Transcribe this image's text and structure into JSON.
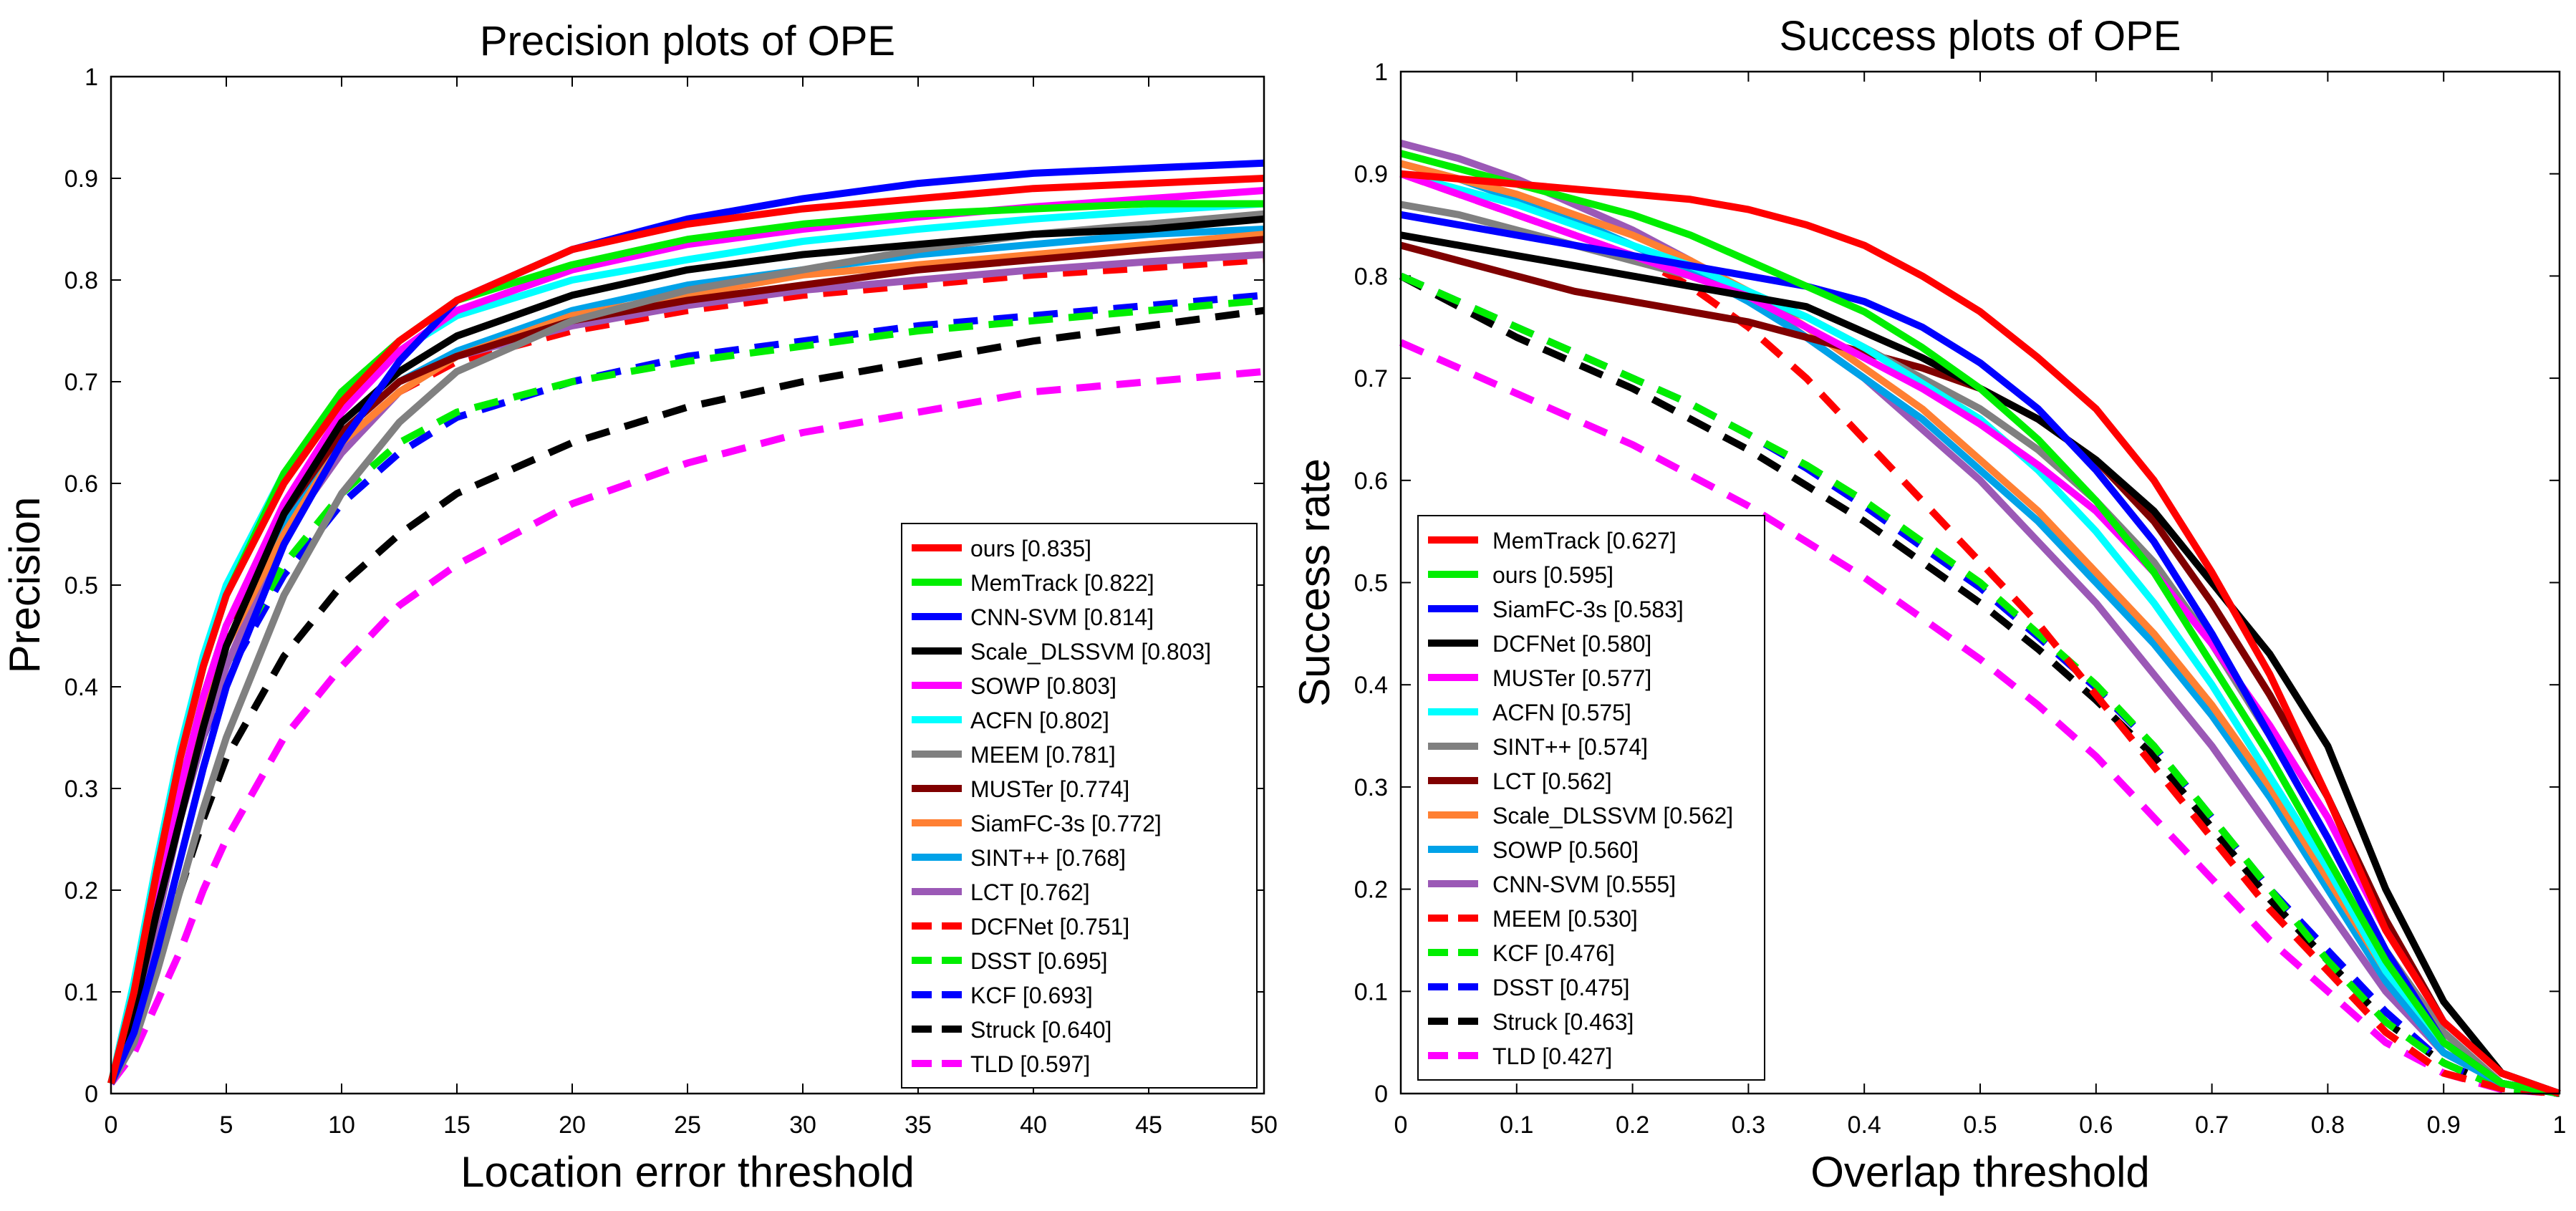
{
  "chart_data": [
    {
      "type": "line",
      "title": "Precision plots of OPE",
      "xlabel": "Location error threshold",
      "ylabel": "Precision",
      "xlim": [
        0,
        50
      ],
      "ylim": [
        0,
        1
      ],
      "xticks": [
        "0",
        "5",
        "10",
        "15",
        "20",
        "25",
        "30",
        "35",
        "40",
        "45",
        "50"
      ],
      "yticks": [
        "0",
        "0.1",
        "0.2",
        "0.3",
        "0.4",
        "0.5",
        "0.6",
        "0.7",
        "0.8",
        "0.9",
        "1"
      ],
      "legend_position": "bottom-right",
      "x": [
        0,
        1,
        2,
        3,
        4,
        5,
        7.5,
        10,
        12.5,
        15,
        20,
        25,
        30,
        35,
        40,
        45,
        50
      ],
      "series": [
        {
          "name": "ours",
          "score": "[0.835]",
          "color": "#ff0000",
          "dashed": false,
          "values": [
            0.01,
            0.1,
            0.22,
            0.33,
            0.42,
            0.49,
            0.6,
            0.68,
            0.74,
            0.78,
            0.83,
            0.855,
            0.87,
            0.88,
            0.89,
            0.895,
            0.9
          ]
        },
        {
          "name": "MemTrack",
          "score": "[0.822]",
          "color": "#00ee00",
          "dashed": false,
          "values": [
            0.01,
            0.1,
            0.22,
            0.33,
            0.42,
            0.49,
            0.61,
            0.69,
            0.74,
            0.78,
            0.815,
            0.84,
            0.855,
            0.865,
            0.87,
            0.875,
            0.875
          ]
        },
        {
          "name": "CNN-SVM",
          "score": "[0.814]",
          "color": "#0000ff",
          "dashed": false,
          "values": [
            0.01,
            0.06,
            0.14,
            0.23,
            0.32,
            0.4,
            0.54,
            0.64,
            0.72,
            0.78,
            0.83,
            0.86,
            0.88,
            0.895,
            0.905,
            0.91,
            0.915
          ]
        },
        {
          "name": "Scale_DLSSVM",
          "score": "[0.803]",
          "color": "#000000",
          "dashed": false,
          "values": [
            0.01,
            0.08,
            0.18,
            0.27,
            0.36,
            0.44,
            0.57,
            0.66,
            0.71,
            0.745,
            0.785,
            0.81,
            0.825,
            0.835,
            0.845,
            0.85,
            0.86
          ]
        },
        {
          "name": "SOWP",
          "score": "[0.803]",
          "color": "#ff00ff",
          "dashed": false,
          "values": [
            0.01,
            0.09,
            0.2,
            0.3,
            0.39,
            0.46,
            0.58,
            0.67,
            0.73,
            0.77,
            0.81,
            0.835,
            0.85,
            0.862,
            0.872,
            0.88,
            0.888
          ]
        },
        {
          "name": "ACFN",
          "score": "[0.802]",
          "color": "#00ffff",
          "dashed": false,
          "values": [
            0.01,
            0.11,
            0.23,
            0.34,
            0.43,
            0.5,
            0.61,
            0.68,
            0.73,
            0.765,
            0.8,
            0.82,
            0.838,
            0.85,
            0.86,
            0.868,
            0.875
          ]
        },
        {
          "name": "MEEM",
          "score": "[0.781]",
          "color": "#808080",
          "dashed": false,
          "values": [
            0.01,
            0.05,
            0.12,
            0.2,
            0.28,
            0.35,
            0.49,
            0.59,
            0.66,
            0.71,
            0.76,
            0.79,
            0.81,
            0.83,
            0.845,
            0.855,
            0.865
          ]
        },
        {
          "name": "MUSTer",
          "score": "[0.774]",
          "color": "#800000",
          "dashed": false,
          "values": [
            0.01,
            0.09,
            0.2,
            0.3,
            0.39,
            0.46,
            0.57,
            0.65,
            0.7,
            0.725,
            0.76,
            0.78,
            0.795,
            0.81,
            0.82,
            0.83,
            0.84
          ]
        },
        {
          "name": "SiamFC-3s",
          "score": "[0.772]",
          "color": "#ff8033",
          "dashed": false,
          "values": [
            0.01,
            0.08,
            0.19,
            0.29,
            0.37,
            0.44,
            0.55,
            0.64,
            0.69,
            0.725,
            0.765,
            0.785,
            0.805,
            0.815,
            0.825,
            0.835,
            0.845
          ]
        },
        {
          "name": "SINT++",
          "score": "[0.768]",
          "color": "#00a2e8",
          "dashed": false,
          "values": [
            0.01,
            0.08,
            0.19,
            0.29,
            0.37,
            0.44,
            0.56,
            0.65,
            0.7,
            0.73,
            0.77,
            0.795,
            0.81,
            0.825,
            0.835,
            0.845,
            0.85
          ]
        },
        {
          "name": "LCT",
          "score": "[0.762]",
          "color": "#9b59b6",
          "dashed": false,
          "values": [
            0.01,
            0.07,
            0.17,
            0.27,
            0.35,
            0.42,
            0.55,
            0.63,
            0.69,
            0.725,
            0.755,
            0.775,
            0.79,
            0.8,
            0.81,
            0.818,
            0.825
          ]
        },
        {
          "name": "DCFNet",
          "score": "[0.751]",
          "color": "#ff0000",
          "dashed": true,
          "values": [
            0.01,
            0.09,
            0.2,
            0.3,
            0.38,
            0.45,
            0.56,
            0.64,
            0.69,
            0.72,
            0.75,
            0.77,
            0.785,
            0.795,
            0.805,
            0.812,
            0.82
          ]
        },
        {
          "name": "DSST",
          "score": "[0.695]",
          "color": "#00ee00",
          "dashed": true,
          "values": [
            0.01,
            0.1,
            0.2,
            0.29,
            0.36,
            0.42,
            0.52,
            0.59,
            0.64,
            0.67,
            0.7,
            0.72,
            0.735,
            0.75,
            0.76,
            0.77,
            0.78
          ]
        },
        {
          "name": "KCF",
          "score": "[0.693]",
          "color": "#0000ff",
          "dashed": true,
          "values": [
            0.01,
            0.09,
            0.19,
            0.28,
            0.35,
            0.41,
            0.51,
            0.58,
            0.63,
            0.665,
            0.7,
            0.725,
            0.74,
            0.755,
            0.765,
            0.775,
            0.785
          ]
        },
        {
          "name": "Struck",
          "score": "[0.640]",
          "color": "#000000",
          "dashed": true,
          "values": [
            0.01,
            0.06,
            0.13,
            0.2,
            0.27,
            0.33,
            0.43,
            0.5,
            0.55,
            0.59,
            0.64,
            0.675,
            0.7,
            0.72,
            0.74,
            0.755,
            0.77
          ]
        },
        {
          "name": "TLD",
          "score": "[0.597]",
          "color": "#ff00ff",
          "dashed": true,
          "values": [
            0.01,
            0.04,
            0.09,
            0.14,
            0.2,
            0.25,
            0.35,
            0.42,
            0.48,
            0.52,
            0.58,
            0.62,
            0.65,
            0.67,
            0.69,
            0.7,
            0.71
          ]
        }
      ]
    },
    {
      "type": "line",
      "title": "Success plots of OPE",
      "xlabel": "Overlap threshold",
      "ylabel": "Success rate",
      "xlim": [
        0,
        1
      ],
      "ylim": [
        0,
        1
      ],
      "xticks": [
        "0",
        "0.1",
        "0.2",
        "0.3",
        "0.4",
        "0.5",
        "0.6",
        "0.7",
        "0.8",
        "0.9",
        "1"
      ],
      "yticks": [
        "0",
        "0.1",
        "0.2",
        "0.3",
        "0.4",
        "0.5",
        "0.6",
        "0.7",
        "0.8",
        "0.9",
        "1"
      ],
      "legend_position": "bottom-left",
      "x": [
        0,
        0.05,
        0.1,
        0.15,
        0.2,
        0.25,
        0.3,
        0.35,
        0.4,
        0.45,
        0.5,
        0.55,
        0.6,
        0.65,
        0.7,
        0.75,
        0.8,
        0.85,
        0.9,
        0.95,
        1
      ],
      "series": [
        {
          "name": "MemTrack",
          "score": "[0.627]",
          "color": "#ff0000",
          "dashed": false,
          "values": [
            0.9,
            0.895,
            0.89,
            0.885,
            0.88,
            0.875,
            0.865,
            0.85,
            0.83,
            0.8,
            0.765,
            0.72,
            0.67,
            0.6,
            0.51,
            0.41,
            0.29,
            0.16,
            0.07,
            0.02,
            0
          ]
        },
        {
          "name": "ours",
          "score": "[0.595]",
          "color": "#00ee00",
          "dashed": false,
          "values": [
            0.92,
            0.905,
            0.89,
            0.875,
            0.86,
            0.84,
            0.815,
            0.79,
            0.765,
            0.73,
            0.69,
            0.64,
            0.58,
            0.51,
            0.42,
            0.33,
            0.23,
            0.13,
            0.05,
            0.01,
            0
          ]
        },
        {
          "name": "SiamFC-3s",
          "score": "[0.583]",
          "color": "#0000ff",
          "dashed": false,
          "values": [
            0.86,
            0.85,
            0.84,
            0.83,
            0.82,
            0.81,
            0.8,
            0.79,
            0.775,
            0.75,
            0.715,
            0.67,
            0.61,
            0.54,
            0.45,
            0.35,
            0.25,
            0.14,
            0.05,
            0.01,
            0
          ]
        },
        {
          "name": "DCFNet",
          "score": "[0.580]",
          "color": "#000000",
          "dashed": false,
          "values": [
            0.84,
            0.83,
            0.82,
            0.81,
            0.8,
            0.79,
            0.78,
            0.77,
            0.745,
            0.72,
            0.69,
            0.66,
            0.62,
            0.57,
            0.5,
            0.43,
            0.34,
            0.2,
            0.09,
            0.02,
            0
          ]
        },
        {
          "name": "MUSTer",
          "score": "[0.577]",
          "color": "#ff00ff",
          "dashed": false,
          "values": [
            0.9,
            0.88,
            0.86,
            0.84,
            0.82,
            0.8,
            0.78,
            0.75,
            0.72,
            0.69,
            0.655,
            0.615,
            0.57,
            0.51,
            0.44,
            0.36,
            0.27,
            0.16,
            0.07,
            0.02,
            0
          ]
        },
        {
          "name": "ACFN",
          "score": "[0.575]",
          "color": "#00ffff",
          "dashed": false,
          "values": [
            0.9,
            0.885,
            0.87,
            0.85,
            0.83,
            0.81,
            0.785,
            0.76,
            0.73,
            0.695,
            0.66,
            0.61,
            0.55,
            0.48,
            0.4,
            0.31,
            0.22,
            0.12,
            0.05,
            0.01,
            0
          ]
        },
        {
          "name": "SINT++",
          "score": "[0.574]",
          "color": "#808080",
          "dashed": false,
          "values": [
            0.87,
            0.86,
            0.845,
            0.83,
            0.815,
            0.8,
            0.78,
            0.76,
            0.73,
            0.7,
            0.67,
            0.63,
            0.58,
            0.52,
            0.44,
            0.35,
            0.25,
            0.14,
            0.06,
            0.01,
            0
          ]
        },
        {
          "name": "LCT",
          "score": "[0.562]",
          "color": "#800000",
          "dashed": false,
          "values": [
            0.83,
            0.815,
            0.8,
            0.785,
            0.775,
            0.765,
            0.755,
            0.74,
            0.725,
            0.71,
            0.69,
            0.66,
            0.62,
            0.56,
            0.48,
            0.39,
            0.29,
            0.17,
            0.07,
            0.02,
            0
          ]
        },
        {
          "name": "Scale_DLSSVM",
          "score": "[0.562]",
          "color": "#ff8033",
          "dashed": false,
          "values": [
            0.91,
            0.895,
            0.88,
            0.86,
            0.84,
            0.815,
            0.785,
            0.75,
            0.71,
            0.67,
            0.62,
            0.57,
            0.51,
            0.45,
            0.38,
            0.3,
            0.21,
            0.12,
            0.05,
            0.01,
            0
          ]
        },
        {
          "name": "SOWP",
          "score": "[0.560]",
          "color": "#00a2e8",
          "dashed": false,
          "values": [
            0.91,
            0.895,
            0.875,
            0.855,
            0.83,
            0.805,
            0.775,
            0.74,
            0.7,
            0.66,
            0.61,
            0.56,
            0.5,
            0.44,
            0.37,
            0.29,
            0.2,
            0.11,
            0.04,
            0.01,
            0
          ]
        },
        {
          "name": "CNN-SVM",
          "score": "[0.555]",
          "color": "#9b59b6",
          "dashed": false,
          "values": [
            0.93,
            0.915,
            0.895,
            0.87,
            0.845,
            0.815,
            0.78,
            0.74,
            0.7,
            0.65,
            0.6,
            0.54,
            0.48,
            0.41,
            0.34,
            0.26,
            0.18,
            0.1,
            0.04,
            0.01,
            0
          ]
        },
        {
          "name": "MEEM",
          "score": "[0.530]",
          "color": "#ff0000",
          "dashed": true,
          "values": [
            0.9,
            0.88,
            0.86,
            0.84,
            0.82,
            0.79,
            0.75,
            0.7,
            0.64,
            0.58,
            0.52,
            0.46,
            0.39,
            0.32,
            0.25,
            0.18,
            0.12,
            0.06,
            0.02,
            0.005,
            0
          ]
        },
        {
          "name": "KCF",
          "score": "[0.476]",
          "color": "#00ee00",
          "dashed": true,
          "values": [
            0.8,
            0.775,
            0.75,
            0.725,
            0.7,
            0.675,
            0.645,
            0.615,
            0.58,
            0.54,
            0.5,
            0.45,
            0.4,
            0.34,
            0.27,
            0.2,
            0.13,
            0.07,
            0.03,
            0.005,
            0
          ]
        },
        {
          "name": "DSST",
          "score": "[0.475]",
          "color": "#0000ff",
          "dashed": true,
          "values": [
            0.8,
            0.775,
            0.75,
            0.725,
            0.7,
            0.675,
            0.645,
            0.612,
            0.575,
            0.535,
            0.495,
            0.447,
            0.397,
            0.34,
            0.27,
            0.2,
            0.14,
            0.08,
            0.03,
            0.005,
            0
          ]
        },
        {
          "name": "Struck",
          "score": "[0.463]",
          "color": "#000000",
          "dashed": true,
          "values": [
            0.8,
            0.77,
            0.74,
            0.715,
            0.69,
            0.66,
            0.63,
            0.595,
            0.56,
            0.52,
            0.48,
            0.435,
            0.385,
            0.33,
            0.26,
            0.19,
            0.13,
            0.07,
            0.03,
            0.005,
            0
          ]
        },
        {
          "name": "TLD",
          "score": "[0.427]",
          "color": "#ff00ff",
          "dashed": true,
          "values": [
            0.735,
            0.71,
            0.685,
            0.66,
            0.635,
            0.605,
            0.575,
            0.54,
            0.505,
            0.465,
            0.425,
            0.38,
            0.33,
            0.27,
            0.21,
            0.15,
            0.1,
            0.05,
            0.02,
            0.004,
            0
          ]
        }
      ]
    }
  ]
}
